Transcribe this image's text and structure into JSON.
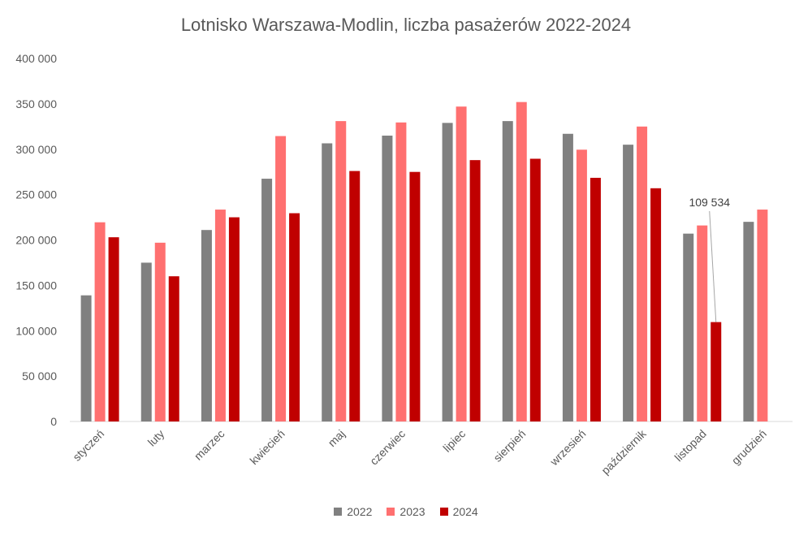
{
  "chart_data": {
    "type": "bar",
    "title": "Lotnisko Warszawa-Modlin, liczba pasażerów 2022-2024",
    "categories": [
      "styczeń",
      "luty",
      "marzec",
      "kwiecień",
      "maj",
      "czerwiec",
      "lipiec",
      "sierpień",
      "wrzesień",
      "październik",
      "listopad",
      "grudzień"
    ],
    "series": [
      {
        "name": "2022",
        "color": "#808080",
        "values": [
          139000,
          175000,
          211000,
          267500,
          306500,
          315000,
          329000,
          331000,
          317000,
          305000,
          207000,
          220000
        ]
      },
      {
        "name": "2023",
        "color": "#ff7070",
        "values": [
          219500,
          197000,
          233500,
          314500,
          331000,
          329500,
          347000,
          352000,
          299500,
          325000,
          216000,
          233500
        ]
      },
      {
        "name": "2024",
        "color": "#c00000",
        "values": [
          203000,
          160000,
          225000,
          229500,
          276000,
          275000,
          288000,
          289500,
          268500,
          257000,
          109534,
          null
        ]
      }
    ],
    "ylim": [
      0,
      400000
    ],
    "yticks": [
      0,
      50000,
      100000,
      150000,
      200000,
      250000,
      300000,
      350000,
      400000
    ],
    "ytick_labels": [
      "0",
      "50 000",
      "100 000",
      "150 000",
      "200 000",
      "250 000",
      "300 000",
      "350 000",
      "400 000"
    ],
    "xlabel": "",
    "ylabel": "",
    "grid": false,
    "legend_position": "bottom",
    "annotation": {
      "label": "109 534",
      "category": "listopad",
      "series": "2024"
    }
  }
}
